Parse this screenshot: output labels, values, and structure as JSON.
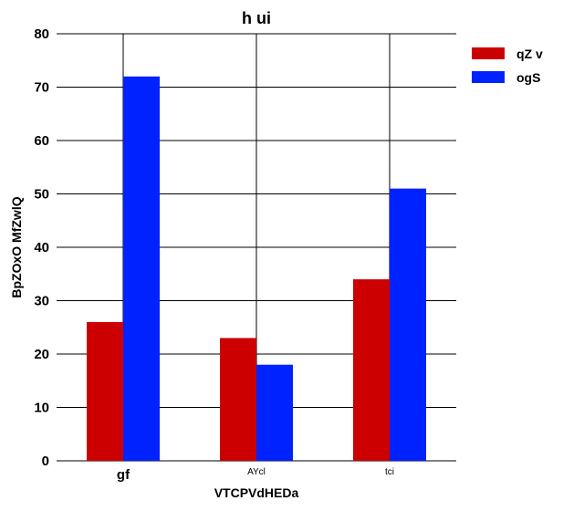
{
  "chart_data": {
    "type": "bar",
    "title": "h   ui",
    "xlabel": "VTCPVdHEDa",
    "ylabel": "BpZOxO MfZwlQ",
    "categories": [
      "gf",
      "AYcl",
      "tci"
    ],
    "series": [
      {
        "name": "qZ v",
        "color": "#cc0000",
        "values": [
          26,
          23,
          34
        ]
      },
      {
        "name": "ogS",
        "color": "#0022ff",
        "values": [
          72,
          18,
          51
        ]
      }
    ],
    "ylim": [
      0,
      80
    ],
    "yticks": [
      0,
      10,
      20,
      30,
      40,
      50,
      60,
      70,
      80
    ],
    "grid": true,
    "legend": "top-right"
  }
}
